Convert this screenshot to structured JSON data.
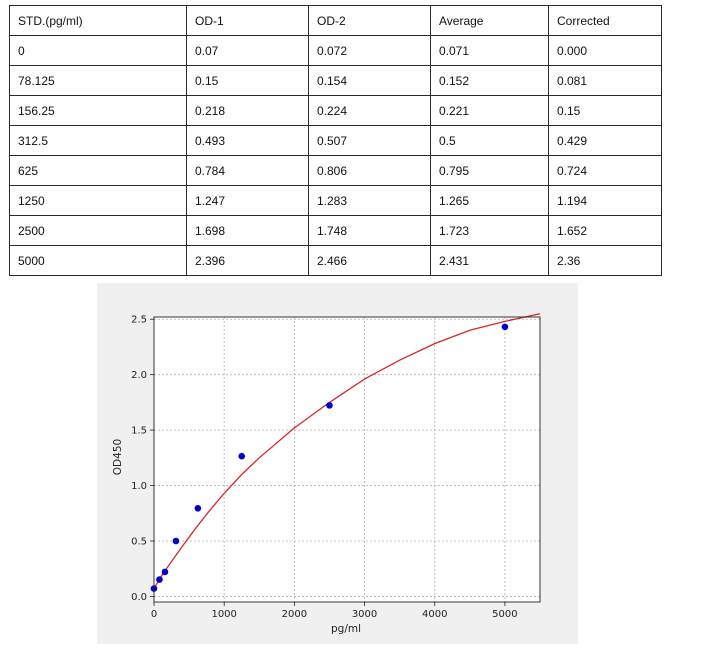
{
  "table": {
    "headers": [
      "STD.(pg/ml)",
      "OD-1",
      "OD-2",
      "Average",
      "Corrected"
    ],
    "rows": [
      [
        "0",
        "0.07",
        "0.072",
        "0.071",
        "0.000"
      ],
      [
        "78.125",
        "0.15",
        "0.154",
        "0.152",
        "0.081"
      ],
      [
        "156.25",
        "0.218",
        "0.224",
        "0.221",
        "0.15"
      ],
      [
        "312.5",
        "0.493",
        "0.507",
        "0.5",
        "0.429"
      ],
      [
        "625",
        "0.784",
        "0.806",
        "0.795",
        "0.724"
      ],
      [
        "1250",
        "1.247",
        "1.283",
        "1.265",
        "1.194"
      ],
      [
        "2500",
        "1.698",
        "1.748",
        "1.723",
        "1.652"
      ],
      [
        "5000",
        "2.396",
        "2.466",
        "2.431",
        "2.36"
      ]
    ]
  },
  "chart_data": {
    "type": "scatter",
    "xlabel": "pg/ml",
    "ylabel": "OD450",
    "xlim": [
      0,
      5500
    ],
    "ylim": [
      -0.05,
      2.52
    ],
    "xticks": [
      0,
      1000,
      2000,
      3000,
      4000,
      5000
    ],
    "yticks": [
      0.0,
      0.5,
      1.0,
      1.5,
      2.0,
      2.5
    ],
    "ytick_labels": [
      "0.0",
      "0.5",
      "1.0",
      "1.5",
      "2.0",
      "2.5"
    ],
    "grid": true,
    "points": {
      "x": [
        0,
        78.125,
        156.25,
        312.5,
        625,
        1250,
        2500,
        5000
      ],
      "y": [
        0.071,
        0.152,
        0.221,
        0.5,
        0.795,
        1.265,
        1.723,
        2.431
      ],
      "color": "#0000cc"
    },
    "fit_curve": {
      "color": "#d62728",
      "x": [
        0,
        100,
        200,
        400,
        600,
        800,
        1000,
        1250,
        1500,
        2000,
        2500,
        3000,
        3500,
        4000,
        4500,
        5000,
        5500
      ],
      "y": [
        0.07,
        0.18,
        0.27,
        0.45,
        0.62,
        0.78,
        0.93,
        1.1,
        1.25,
        1.52,
        1.75,
        1.96,
        2.13,
        2.28,
        2.4,
        2.48,
        2.55
      ]
    }
  }
}
